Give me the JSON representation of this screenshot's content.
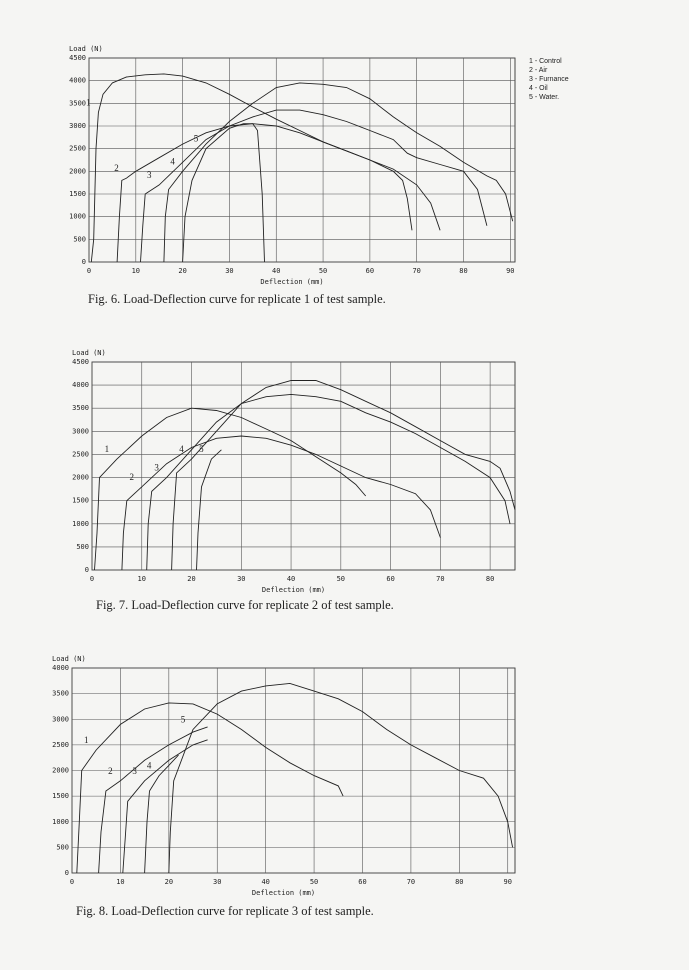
{
  "chart_data": [
    {
      "type": "line",
      "caption": "Fig. 6. Load-Deflection curve for replicate 1 of test sample.",
      "ylabel": "Load (N)",
      "xlabel": "Deflection (mm)",
      "xlim": [
        0,
        91
      ],
      "xticks": [
        0,
        10,
        20,
        30,
        40,
        50,
        60,
        70,
        80,
        90
      ],
      "ylim": [
        0,
        4500
      ],
      "yticks": [
        0,
        500,
        1000,
        1500,
        2000,
        2500,
        3000,
        3500,
        4000,
        4500
      ],
      "grid": true,
      "legend": "outside-right",
      "series": [
        {
          "name": "1 - Control",
          "label": "1",
          "color": "#222222",
          "x": [
            0.5,
            1,
            1.5,
            2,
            3,
            5,
            8,
            12,
            16,
            20,
            25,
            30,
            35,
            40,
            45,
            50,
            55,
            60,
            65,
            67,
            68,
            69
          ],
          "values": [
            0,
            500,
            2500,
            3300,
            3700,
            3950,
            4080,
            4130,
            4150,
            4100,
            3950,
            3700,
            3420,
            3150,
            2900,
            2650,
            2450,
            2250,
            2000,
            1800,
            1400,
            700
          ]
        },
        {
          "name": "2 - Air",
          "label": "2",
          "color": "#222222",
          "x": [
            6,
            6.5,
            7,
            8,
            10,
            15,
            20,
            25,
            30,
            35,
            40,
            45,
            50,
            55,
            60,
            65,
            70,
            73,
            75
          ],
          "values": [
            0,
            1000,
            1800,
            1850,
            2000,
            2300,
            2600,
            2850,
            3000,
            3050,
            3000,
            2850,
            2650,
            2450,
            2250,
            2050,
            1700,
            1300,
            700
          ]
        },
        {
          "name": "3 - Furnance",
          "label": "3",
          "color": "#222222",
          "x": [
            11,
            11.5,
            12,
            15,
            20,
            25,
            30,
            35,
            40,
            45,
            50,
            55,
            60,
            65,
            68,
            70,
            75,
            80,
            83,
            85
          ],
          "values": [
            0,
            800,
            1500,
            1700,
            2200,
            2700,
            3000,
            3200,
            3350,
            3350,
            3250,
            3100,
            2900,
            2700,
            2400,
            2300,
            2150,
            2000,
            1600,
            800
          ]
        },
        {
          "name": "4 - Oil",
          "label": "4",
          "color": "#222222",
          "x": [
            16,
            16.3,
            17,
            20,
            25,
            30,
            35,
            40,
            45,
            50,
            55,
            60,
            65,
            70,
            75,
            80,
            85,
            87,
            89,
            90.5
          ],
          "values": [
            0,
            1000,
            1600,
            2000,
            2600,
            3100,
            3500,
            3850,
            3950,
            3920,
            3850,
            3600,
            3200,
            2850,
            2550,
            2200,
            1900,
            1800,
            1500,
            900
          ]
        },
        {
          "name": "5 - Water.",
          "label": "5",
          "color": "#222222",
          "x": [
            20,
            20.5,
            22,
            25,
            30,
            33,
            35,
            36,
            37,
            37.5
          ],
          "values": [
            0,
            1000,
            1800,
            2500,
            2950,
            3050,
            3050,
            2900,
            1500,
            0
          ]
        }
      ]
    },
    {
      "type": "line",
      "caption": "Fig. 7. Load-Deflection curve for replicate 2 of test sample.",
      "ylabel": "Load (N)",
      "xlabel": "Deflection (mm)",
      "xlim": [
        0,
        85
      ],
      "xticks": [
        0,
        10,
        20,
        30,
        40,
        50,
        60,
        70,
        80
      ],
      "ylim": [
        0,
        4500
      ],
      "yticks": [
        0,
        500,
        1000,
        1500,
        2000,
        2500,
        3000,
        3500,
        4000,
        4500
      ],
      "grid": true,
      "series": [
        {
          "label": "1",
          "color": "#222222",
          "x": [
            0.5,
            1,
            1.5,
            5,
            10,
            15,
            20,
            25,
            30,
            35,
            40,
            45,
            50,
            53,
            55
          ],
          "values": [
            0,
            800,
            2000,
            2400,
            2900,
            3300,
            3500,
            3450,
            3300,
            3050,
            2800,
            2450,
            2100,
            1850,
            1600
          ]
        },
        {
          "label": "2",
          "color": "#222222",
          "x": [
            6,
            6.3,
            7,
            10,
            15,
            20,
            25,
            30,
            35,
            40,
            45,
            50,
            55,
            60,
            65,
            68,
            70
          ],
          "values": [
            0,
            800,
            1500,
            1800,
            2300,
            2650,
            2850,
            2900,
            2850,
            2700,
            2500,
            2250,
            2000,
            1850,
            1650,
            1300,
            700
          ]
        },
        {
          "label": "3",
          "color": "#222222",
          "x": [
            11,
            11.3,
            12,
            15,
            20,
            25,
            30,
            35,
            40,
            45,
            50,
            55,
            60,
            65,
            70,
            75,
            80,
            83,
            84
          ],
          "values": [
            0,
            1000,
            1700,
            2000,
            2600,
            3200,
            3600,
            3750,
            3800,
            3750,
            3650,
            3400,
            3200,
            2950,
            2650,
            2350,
            2000,
            1500,
            1000
          ]
        },
        {
          "label": "4",
          "color": "#222222",
          "x": [
            16,
            16.3,
            17,
            20,
            25,
            30,
            35,
            40,
            45,
            50,
            55,
            60,
            65,
            70,
            75,
            80,
            82,
            84,
            85
          ],
          "values": [
            0,
            1000,
            2100,
            2400,
            3000,
            3600,
            3950,
            4100,
            4100,
            3900,
            3650,
            3400,
            3100,
            2800,
            2500,
            2350,
            2200,
            1700,
            1300
          ]
        },
        {
          "label": "5",
          "color": "#222222",
          "x": [
            21,
            21.3,
            22,
            24,
            26
          ],
          "values": [
            0,
            800,
            1800,
            2400,
            2600
          ]
        }
      ]
    },
    {
      "type": "line",
      "caption": "Fig. 8. Load-Deflection curve for replicate 3 of test sample.",
      "ylabel": "Load (N)",
      "xlabel": "Deflection (mm)",
      "xlim": [
        0,
        91.5
      ],
      "xticks": [
        0,
        10,
        20,
        30,
        40,
        50,
        60,
        70,
        80,
        90
      ],
      "ylim": [
        0,
        4000
      ],
      "yticks": [
        0,
        500,
        1000,
        1500,
        2000,
        2500,
        3000,
        3500,
        4000
      ],
      "grid": true,
      "series": [
        {
          "label": "1",
          "color": "#222222",
          "x": [
            1,
            1.5,
            2,
            5,
            10,
            15,
            20,
            25,
            30,
            35,
            40,
            45,
            50,
            55,
            56
          ],
          "values": [
            0,
            1000,
            2000,
            2400,
            2900,
            3200,
            3320,
            3300,
            3100,
            2800,
            2450,
            2150,
            1900,
            1700,
            1500
          ]
        },
        {
          "label": "2",
          "color": "#222222",
          "x": [
            5.5,
            6,
            7,
            10,
            15,
            20,
            25,
            28
          ],
          "values": [
            0,
            800,
            1600,
            1800,
            2200,
            2500,
            2750,
            2850
          ]
        },
        {
          "label": "3",
          "color": "#222222",
          "x": [
            10.5,
            11,
            11.5,
            15,
            20,
            25,
            28
          ],
          "values": [
            0,
            700,
            1400,
            1800,
            2200,
            2500,
            2600
          ]
        },
        {
          "label": "4",
          "color": "#222222",
          "x": [
            15,
            15.5,
            16,
            18,
            20,
            22
          ],
          "values": [
            0,
            1000,
            1600,
            1900,
            2100,
            2300
          ]
        },
        {
          "label": "5",
          "color": "#222222",
          "x": [
            20,
            20.3,
            21,
            25,
            30,
            35,
            40,
            45,
            50,
            55,
            60,
            65,
            70,
            75,
            80,
            85,
            88,
            90,
            91
          ],
          "values": [
            0,
            800,
            1800,
            2800,
            3300,
            3550,
            3650,
            3700,
            3550,
            3400,
            3150,
            2800,
            2500,
            2250,
            2000,
            1850,
            1500,
            1000,
            500
          ]
        }
      ]
    }
  ]
}
